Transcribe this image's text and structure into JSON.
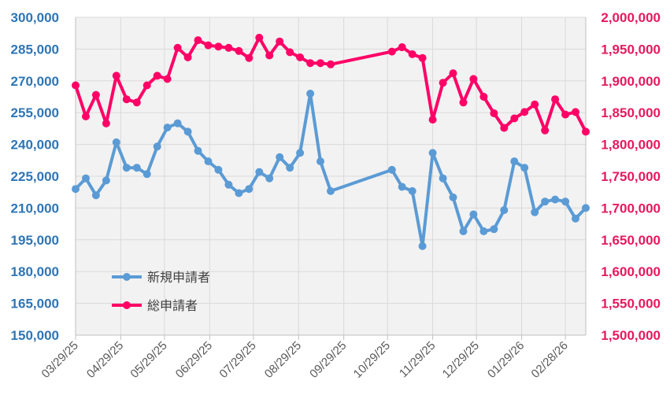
{
  "chart_data": {
    "type": "line",
    "title": "",
    "xlabel": "",
    "ylabel_left": "",
    "ylabel_right": "",
    "x_tick_labels": [
      "03/29/25",
      "04/29/25",
      "05/29/25",
      "06/29/25",
      "07/29/25",
      "08/29/25",
      "09/29/25",
      "10/29/25",
      "11/29/25",
      "12/29/25",
      "01/29/26",
      "02/28/26"
    ],
    "x_tick_dates": [
      "2025-03-29",
      "2025-04-29",
      "2025-05-29",
      "2025-06-29",
      "2025-07-29",
      "2025-08-29",
      "2025-09-29",
      "2025-10-29",
      "2025-11-29",
      "2025-12-29",
      "2026-01-29",
      "2026-02-28"
    ],
    "x_range": [
      "2025-03-29",
      "2026-03-14"
    ],
    "y_left": {
      "min": 150000,
      "max": 300000,
      "step": 15000,
      "tick_labels": [
        "150,000",
        "165,000",
        "180,000",
        "195,000",
        "210,000",
        "225,000",
        "240,000",
        "255,000",
        "270,000",
        "285,000",
        "300,000"
      ],
      "color": "#2e75b6"
    },
    "y_right": {
      "min": 1500000,
      "max": 2000000,
      "step": 50000,
      "tick_labels": [
        "1,500,000",
        "1,550,000",
        "1,600,000",
        "1,650,000",
        "1,700,000",
        "1,750,000",
        "1,800,000",
        "1,850,000",
        "1,900,000",
        "1,950,000",
        "2,000,000"
      ],
      "color": "#e6195f"
    },
    "grid": true,
    "legend_position": "lower-left",
    "series": [
      {
        "name": "新規申請者",
        "axis": "left",
        "color": "#5b9bd5",
        "points": [
          [
            "2025-03-29",
            219000
          ],
          [
            "2025-04-05",
            224000
          ],
          [
            "2025-04-12",
            216000
          ],
          [
            "2025-04-19",
            223000
          ],
          [
            "2025-04-26",
            241000
          ],
          [
            "2025-05-03",
            229000
          ],
          [
            "2025-05-10",
            229000
          ],
          [
            "2025-05-17",
            226000
          ],
          [
            "2025-05-24",
            239000
          ],
          [
            "2025-05-31",
            248000
          ],
          [
            "2025-06-07",
            250000
          ],
          [
            "2025-06-14",
            246000
          ],
          [
            "2025-06-21",
            237000
          ],
          [
            "2025-06-28",
            232000
          ],
          [
            "2025-07-05",
            228000
          ],
          [
            "2025-07-12",
            221000
          ],
          [
            "2025-07-19",
            217000
          ],
          [
            "2025-07-26",
            219000
          ],
          [
            "2025-08-02",
            227000
          ],
          [
            "2025-08-09",
            224000
          ],
          [
            "2025-08-16",
            234000
          ],
          [
            "2025-08-23",
            229000
          ],
          [
            "2025-08-30",
            236000
          ],
          [
            "2025-09-06",
            264000
          ],
          [
            "2025-09-13",
            232000
          ],
          [
            "2025-09-20",
            218000
          ],
          [
            "2025-11-01",
            228000
          ],
          [
            "2025-11-08",
            220000
          ],
          [
            "2025-11-15",
            218000
          ],
          [
            "2025-11-22",
            192000
          ],
          [
            "2025-11-29",
            236000
          ],
          [
            "2025-12-06",
            224000
          ],
          [
            "2025-12-13",
            215000
          ],
          [
            "2025-12-20",
            199000
          ],
          [
            "2025-12-27",
            207000
          ],
          [
            "2026-01-03",
            199000
          ],
          [
            "2026-01-10",
            200000
          ],
          [
            "2026-01-17",
            209000
          ],
          [
            "2026-01-24",
            232000
          ],
          [
            "2026-01-31",
            229000
          ],
          [
            "2026-02-07",
            208000
          ],
          [
            "2026-02-14",
            213000
          ],
          [
            "2026-02-21",
            214000
          ],
          [
            "2026-02-28",
            213000
          ],
          [
            "2026-03-07",
            205000
          ],
          [
            "2026-03-14",
            210000
          ]
        ]
      },
      {
        "name": "総申請者",
        "axis": "right",
        "color": "#ff0066",
        "points": [
          [
            "2025-03-29",
            1893000
          ],
          [
            "2025-04-05",
            1844000
          ],
          [
            "2025-04-12",
            1878000
          ],
          [
            "2025-04-19",
            1833000
          ],
          [
            "2025-04-26",
            1908000
          ],
          [
            "2025-05-03",
            1871000
          ],
          [
            "2025-05-10",
            1866000
          ],
          [
            "2025-05-17",
            1893000
          ],
          [
            "2025-05-24",
            1908000
          ],
          [
            "2025-05-31",
            1903000
          ],
          [
            "2025-06-07",
            1952000
          ],
          [
            "2025-06-14",
            1937000
          ],
          [
            "2025-06-21",
            1964000
          ],
          [
            "2025-06-28",
            1956000
          ],
          [
            "2025-07-05",
            1954000
          ],
          [
            "2025-07-12",
            1952000
          ],
          [
            "2025-07-19",
            1947000
          ],
          [
            "2025-07-26",
            1936000
          ],
          [
            "2025-08-02",
            1968000
          ],
          [
            "2025-08-09",
            1940000
          ],
          [
            "2025-08-16",
            1962000
          ],
          [
            "2025-08-23",
            1945000
          ],
          [
            "2025-08-30",
            1937000
          ],
          [
            "2025-09-06",
            1928000
          ],
          [
            "2025-09-13",
            1928000
          ],
          [
            "2025-09-20",
            1926000
          ],
          [
            "2025-11-01",
            1946000
          ],
          [
            "2025-11-08",
            1953000
          ],
          [
            "2025-11-15",
            1942000
          ],
          [
            "2025-11-22",
            1936000
          ],
          [
            "2025-11-29",
            1839000
          ],
          [
            "2025-12-06",
            1897000
          ],
          [
            "2025-12-13",
            1912000
          ],
          [
            "2025-12-20",
            1866000
          ],
          [
            "2025-12-27",
            1903000
          ],
          [
            "2026-01-03",
            1875000
          ],
          [
            "2026-01-10",
            1849000
          ],
          [
            "2026-01-17",
            1826000
          ],
          [
            "2026-01-24",
            1841000
          ],
          [
            "2026-01-31",
            1851000
          ],
          [
            "2026-02-07",
            1863000
          ],
          [
            "2026-02-14",
            1822000
          ],
          [
            "2026-02-21",
            1871000
          ],
          [
            "2026-02-28",
            1847000
          ],
          [
            "2026-03-07",
            1851000
          ],
          [
            "2026-03-14",
            1820000
          ]
        ]
      }
    ]
  }
}
